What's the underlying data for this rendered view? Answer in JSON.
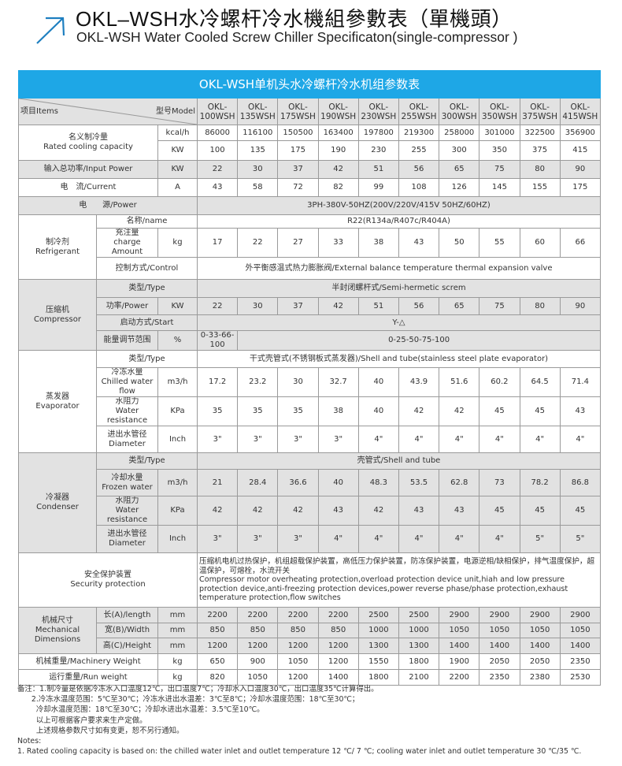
{
  "header": {
    "title_cn": "OKL–WSH水冷螺杆冷水機組參數表（單機頭）",
    "title_en": "OKL-WSH Water Cooled Screw Chiller Specificaton(single-compressor )",
    "icon": "arrow-up-right-icon",
    "accent_color": "#1e7fc0"
  },
  "table": {
    "title": "OKL-WSH单机头水冷螺杆冷水机组参数表",
    "title_bg": "#1ea7e6",
    "items_label": "项目Items",
    "model_label": "型号Model",
    "models": [
      "OKL-100WSH",
      "OKL-135WSH",
      "OKL-175WSH",
      "OKL-190WSH",
      "OKL-230WSH",
      "OKL-255WSH",
      "OKL-300WSH",
      "OKL-350WSH",
      "OKL-375WSH",
      "OKL-415WSH"
    ],
    "cooling": {
      "label_cn": "名义制冷量",
      "label_en": "Rated cooling capacity",
      "unit_kcal": "kcal/h",
      "unit_kw": "KW",
      "kcal": [
        86000,
        116100,
        150500,
        163400,
        197800,
        219300,
        258000,
        301000,
        322500,
        356900
      ],
      "kw": [
        100,
        135,
        175,
        190,
        230,
        255,
        300,
        350,
        375,
        415
      ]
    },
    "input_power": {
      "label": "输入总功率/Input Power",
      "unit": "KW",
      "values": [
        22,
        30,
        37,
        42,
        51,
        56,
        65,
        75,
        80,
        90
      ]
    },
    "current": {
      "label": "电　流/Current",
      "unit": "A",
      "values": [
        43,
        58,
        72,
        82,
        99,
        108,
        126,
        145,
        155,
        175
      ]
    },
    "power_supply": {
      "label": "电　　源/Power",
      "value": "3PH-380V-50HZ(200V/220V/415V  50HZ/60HZ)"
    },
    "refrigerant": {
      "group_cn": "制冷剂",
      "group_en": "Refrigerant",
      "name_label": "名称/name",
      "name_value": "R22(R134a/R407c/R404A)",
      "charge_cn": "充注量",
      "charge_en": "charge Amount",
      "charge_unit": "kg",
      "charge": [
        17,
        22,
        27,
        33,
        38,
        43,
        50,
        55,
        60,
        66
      ],
      "control_label": "控制方式/Control",
      "control_value": "外平衡感温式热力膨胀阀/External balance temperature thermal expansion valve"
    },
    "compressor": {
      "group_cn": "压缩机",
      "group_en": "Compressor",
      "type_label": "类型/Type",
      "type_value": "半封闭螺杆式/Semi-hermetic screm",
      "power_label": "功率/Power",
      "power_unit": "KW",
      "power": [
        22,
        30,
        37,
        42,
        51,
        56,
        65,
        75,
        80,
        90
      ],
      "start_label": "启动方式/Start",
      "start_value": "Y-△",
      "energy_label": "能量调节范围",
      "energy_unit": "%",
      "energy_values": [
        "0-33-66-100",
        "0-25-50-75-100"
      ]
    },
    "evaporator": {
      "group_cn": "蒸发器",
      "group_en": "Evaporator",
      "type_label": "类型/Type",
      "type_value": "干式壳管式(不锈钢板式蒸发器)/Shell and tube(stainless steel plate evaporator)",
      "flow_cn": "冷冻水量",
      "flow_en": "Chilled water flow",
      "flow_unit": "m3/h",
      "flow": [
        17.2,
        23.2,
        30,
        32.7,
        40,
        43.9,
        51.6,
        60.2,
        64.5,
        71.4
      ],
      "res_cn": "水阻力",
      "res_en": "Water resistance",
      "res_unit": "KPa",
      "res": [
        35,
        35,
        35,
        38,
        40,
        42,
        42,
        45,
        45,
        43
      ],
      "dia_cn": "进出水管径",
      "dia_en": "Diameter",
      "dia_unit": "Inch",
      "dia": [
        "3\"",
        "3\"",
        "3\"",
        "3\"",
        "4\"",
        "4\"",
        "4\"",
        "4\"",
        "4\"",
        "4\""
      ]
    },
    "condenser": {
      "group_cn": "冷凝器",
      "group_en": "Condenser",
      "type_label": "类型/Type",
      "type_value": "壳管式/Shell and tube",
      "flow_cn": "冷却水量",
      "flow_en": "Frozen water",
      "flow_unit": "m3/h",
      "flow": [
        21,
        28.4,
        36.6,
        40,
        48.3,
        53.5,
        62.8,
        73,
        78.2,
        86.8
      ],
      "res_cn": "水阻力",
      "res_en": "Water resistance",
      "res_unit": "KPa",
      "res": [
        42,
        42,
        42,
        43,
        42,
        43,
        43,
        45,
        45,
        45
      ],
      "dia_cn": "进出水管径",
      "dia_en": "Diameter",
      "dia_unit": "Inch",
      "dia": [
        "3\"",
        "3\"",
        "3\"",
        "4\"",
        "4\"",
        "4\"",
        "4\"",
        "4\"",
        "5\"",
        "5\""
      ]
    },
    "security": {
      "label_cn": "安全保护装置",
      "label_en": "Security protection",
      "text_cn": "压缩机电机过热保护，机组超载保护装置，高低压力保护装置，防冻保护装置，电源逆相/缺相保护，排气温度保护，超温保护，可熔栓，水流开关",
      "text_en": "Compressor motor overheating protection,overload protection device unit,hiah and low pressure protection device,anti-freezing protection devices,power reverse phase/phase protection,exhaust temperature protection,flow switches"
    },
    "dimensions": {
      "group_cn": "机械尺寸",
      "group_en": "Mechanical Dimensions",
      "unit": "mm",
      "length_label": "长(A)/length",
      "length": [
        2200,
        2200,
        2200,
        2200,
        2500,
        2500,
        2900,
        2900,
        2900,
        2900
      ],
      "width_label": "宽(B)/Width",
      "width": [
        850,
        850,
        850,
        850,
        1000,
        1000,
        1050,
        1050,
        1050,
        1050
      ],
      "height_label": "高(C)/Height",
      "height": [
        1200,
        1200,
        1200,
        1200,
        1300,
        1300,
        1400,
        1400,
        1400,
        1400
      ]
    },
    "machinery_weight": {
      "label": "机械重量/Machinery Weight",
      "unit": "kg",
      "values": [
        650,
        900,
        1050,
        1200,
        1550,
        1800,
        1900,
        2050,
        2050,
        2350
      ]
    },
    "run_weight": {
      "label": "运行重量/Run weight",
      "unit": "kg",
      "values": [
        820,
        1050,
        1200,
        1400,
        1800,
        2100,
        2200,
        2350,
        2380,
        2530
      ]
    }
  },
  "notes": {
    "cn_1": "备注：1.制冷量是依据冷冻水入口温度12℃，出口温度7℃；冷却水入口温度30℃，出口温度35℃计算得出。",
    "cn_2": "      2.冷冻水温度范围：5℃至30℃；冷冻水进出水温差：3℃至8℃；冷却水温度范围：18℃至30℃；",
    "cn_3": "        冷却水温度范围：18℃至30℃；冷却水进出水温差：3.5℃至10℃。",
    "cn_4": "        以上可根据客户要求来生产定做。",
    "cn_5": "        上述规格参数尺寸如有变更，恕不另行通知。",
    "en_title": "Notes:",
    "en_1": "1. Rated cooling capacity is based on: the chilled water inlet and outlet temperature 12 ℃/ 7 ℃; cooling water inlet and outlet temperature 30 ℃/35 ℃."
  }
}
